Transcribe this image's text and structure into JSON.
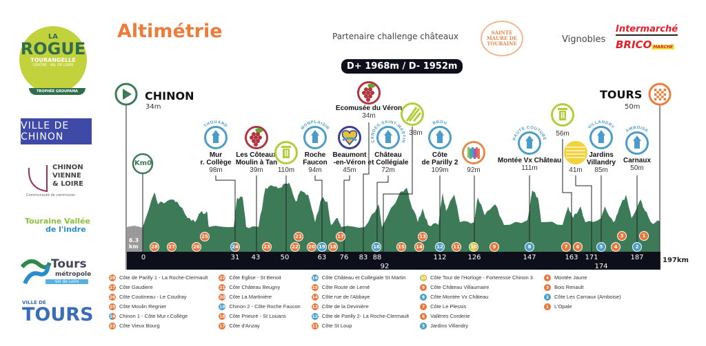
{
  "header": {
    "title": "Altimétrie",
    "partner_label": "Partenaire challenge châteaux",
    "partner_logo": "SAINTE MAURE DE TOURAINE",
    "vignobles_label": "Vignobles",
    "sponsor_1": "Intermarché",
    "sponsor_2": "BRICO",
    "sponsor_2_sub": "MARCHÉ",
    "elevation_stats": "D+ 1968m / D- 1952m"
  },
  "logos": {
    "rogue_la": "LA",
    "rogue_name": "ROGUE",
    "rogue_sub": "TOURANGELLE",
    "rogue_region": "CENTRE · VAL DE LOIRE",
    "rogue_trophy": "TROPHÉE GROUPAMA",
    "chinon": "VILLE DE CHINON",
    "cvl_lines": [
      "CHINON",
      "VIENNE",
      "& LOIRE"
    ],
    "cvl_sub": "Communauté de communes",
    "tvi_1": "Touraine Vallée",
    "tvi_2": "de l'indre",
    "tm_1": "Tours",
    "tm_2": "métropole",
    "tm_3": "Val de Loire",
    "vt_1": "VILLE DE",
    "vt_2": "TOURS"
  },
  "start": {
    "name": "CHINON",
    "alt": "34m",
    "icon": "play-icon"
  },
  "finish": {
    "name": "TOURS",
    "alt": "50m",
    "icon": "checkered-flag-icon"
  },
  "km0": "Km0",
  "neutral_label": "6.3 km",
  "km_end": "197km",
  "colors": {
    "profile": "#3d7a58",
    "neutral": "#9a9a9a",
    "bar": "#0d0f1a",
    "climb": "#e8753a",
    "chateau": "#4a9cc9",
    "wine": "#b1343f",
    "food": "#b5cc3a",
    "accent": "#ec7c3a"
  },
  "pois": [
    {
      "arc": "THOUARD",
      "name": [
        "Mur",
        "r. Collège"
      ],
      "alt": "98m",
      "icon": "castle-tower-icon"
    },
    {
      "arc": "",
      "name": [
        "Les Côteaux",
        "Moulin à Tan"
      ],
      "alt": "39m",
      "icon": "grapes-icon"
    },
    {
      "arc": "",
      "name": [],
      "alt": "110m",
      "icon": "trash-bin-icon"
    },
    {
      "arc": "MONPLAISIR",
      "name": [
        "Roche",
        "Faucon"
      ],
      "alt": "94m",
      "icon": "castle-tower-icon"
    },
    {
      "arc": "",
      "name": [
        "Beaumont",
        "-en-Véron"
      ],
      "alt": "45m",
      "icon": "heart-logo-icon"
    },
    {
      "arc": "CANDES-SAINT-MARTIN",
      "name": [
        "Château",
        "et Collégiale"
      ],
      "alt": "72m",
      "icon": "castle-tower-icon"
    },
    {
      "arc": "",
      "name": [
        "Ecomusée du Véron"
      ],
      "alt": "34m",
      "icon": "grapes-icon"
    },
    {
      "arc": "",
      "name": [],
      "alt": "38m",
      "icon": "fork-knife-icon"
    },
    {
      "arc": "BROU",
      "name": [
        "Côte",
        "de Parilly 2"
      ],
      "alt": "109m",
      "icon": "castle-tower-icon"
    },
    {
      "arc": "",
      "name": [],
      "alt": "92m",
      "icon": "rainbow-fortress-icon"
    },
    {
      "arc": "HAUTE COUTURE",
      "name": [
        "Montée Vx Château"
      ],
      "alt": "111m",
      "icon": "castle-tower-icon"
    },
    {
      "arc": "",
      "name": [],
      "alt": "56m",
      "icon": "trash-bin-icon"
    },
    {
      "arc": "",
      "name": [],
      "alt": "41m",
      "icon": "brick-wall-icon"
    },
    {
      "arc": "VILLANDRY",
      "name": [
        "Jardins",
        "Villandry"
      ],
      "alt": "85m",
      "icon": "castle-tower-icon"
    },
    {
      "arc": "AMBOISE",
      "name": [
        "Carnaux"
      ],
      "alt": "50m",
      "icon": "castle-tower-icon"
    }
  ],
  "km_ticks": [
    "0",
    "31",
    "43",
    "50",
    "63",
    "76",
    "83",
    "88",
    "92",
    "112",
    "126",
    "147",
    "163",
    "171",
    "174",
    "187"
  ],
  "climbs": [
    {
      "n": "28",
      "type": "climb"
    },
    {
      "n": "27",
      "type": "climb"
    },
    {
      "n": "26",
      "type": "climb"
    },
    {
      "n": "25",
      "type": "climb"
    },
    {
      "n": "24",
      "type": "mixed"
    },
    {
      "n": "23",
      "type": "climb"
    },
    {
      "n": "22",
      "type": "climb"
    },
    {
      "n": "21",
      "type": "climb"
    },
    {
      "n": "20",
      "type": "climb"
    },
    {
      "n": "19",
      "type": "chateau"
    },
    {
      "n": "18",
      "type": "climb"
    },
    {
      "n": "17",
      "type": "climb"
    },
    {
      "n": "16",
      "type": "chateau"
    },
    {
      "n": "15",
      "type": "climb"
    },
    {
      "n": "14",
      "type": "climb"
    },
    {
      "n": "13",
      "type": "climb"
    },
    {
      "n": "12",
      "type": "chateau"
    },
    {
      "n": "11",
      "type": "climb"
    },
    {
      "n": "10",
      "type": "rainbow"
    },
    {
      "n": "9",
      "type": "climb"
    },
    {
      "n": "8",
      "type": "chateau"
    },
    {
      "n": "7",
      "type": "climb"
    },
    {
      "n": "6",
      "type": "climb"
    },
    {
      "n": "5",
      "type": "chateau"
    },
    {
      "n": "4",
      "type": "climb"
    },
    {
      "n": "3",
      "type": "climb"
    },
    {
      "n": "2",
      "type": "chateau"
    },
    {
      "n": "1",
      "type": "climb"
    }
  ],
  "legend": [
    {
      "n": "28",
      "type": "climb",
      "label": "Côte de Parilly 1 - La Roche-Clermault"
    },
    {
      "n": "27",
      "type": "climb",
      "label": "Côte Gaudiere"
    },
    {
      "n": "26",
      "type": "climb",
      "label": "Côte Coutineau - Le Coudray"
    },
    {
      "n": "25",
      "type": "climb",
      "label": "Côte Moulin Regnier"
    },
    {
      "n": "24",
      "type": "mixed",
      "label": "Chinon 1 - Côte Mur r.Collège"
    },
    {
      "n": "23",
      "type": "climb",
      "label": "Côte Vieux Bourg"
    },
    {
      "n": "22",
      "type": "climb",
      "label": "Côte Eglise - St Benoit"
    },
    {
      "n": "21",
      "type": "climb",
      "label": "Côte Château Beugny"
    },
    {
      "n": "20",
      "type": "climb",
      "label": "Côte La Martinière"
    },
    {
      "n": "19",
      "type": "chateau",
      "label": "Chinon 2 - Côte Roche Faucon"
    },
    {
      "n": "18",
      "type": "climb",
      "label": "Côte Prieuré - St Louans"
    },
    {
      "n": "17",
      "type": "climb",
      "label": "Côte d'Anzay"
    },
    {
      "n": "16",
      "type": "chateau",
      "label": "Côte Château et Collégiale St Martin"
    },
    {
      "n": "15",
      "type": "climb",
      "label": "Côte Route de Lerné"
    },
    {
      "n": "14",
      "type": "climb",
      "label": "Côte rue de l'Abbaye"
    },
    {
      "n": "13",
      "type": "climb",
      "label": "Côte de la Devinière"
    },
    {
      "n": "12",
      "type": "chateau",
      "label": "Côte de Parilly 2- La Roche-Clermault"
    },
    {
      "n": "11",
      "type": "climb",
      "label": "Côte St Loup"
    },
    {
      "n": "10",
      "type": "rainbow",
      "label": "Côte Tour de l'Horloge - Forteresse Chinon 3"
    },
    {
      "n": "9",
      "type": "climb",
      "label": "Côte Château Villaumaire"
    },
    {
      "n": "8",
      "type": "chateau",
      "label": "Côte Montée Vx Château"
    },
    {
      "n": "7",
      "type": "climb",
      "label": "Côte Le Plessis"
    },
    {
      "n": "6",
      "type": "climb",
      "label": "Vallères Corderie"
    },
    {
      "n": "5",
      "type": "chateau",
      "label": "Jardins Villandry"
    },
    {
      "n": "4",
      "type": "climb",
      "label": "Montée Jaune"
    },
    {
      "n": "3",
      "type": "climb",
      "label": "Bois Renault"
    },
    {
      "n": "2",
      "type": "chateau",
      "label": "Côte Les Carnaux (Amboise)"
    },
    {
      "n": "1",
      "type": "climb",
      "label": "L'Opale"
    }
  ]
}
